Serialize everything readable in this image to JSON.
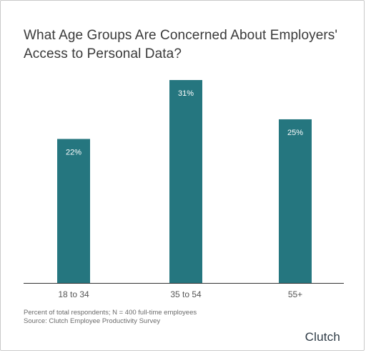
{
  "title": "What Age Groups Are Concerned About Employers' Access to Personal Data?",
  "footer": {
    "note": "Percent of total respondents; N = 400 full-time employees",
    "source": "Source: Clutch Employee Productivity Survey"
  },
  "brand": {
    "logo_text": "Clutch"
  },
  "colors": {
    "bar": "#25767f",
    "axis": "#333333",
    "label_on_bar": "#ffffff",
    "tick_label": "#555555"
  },
  "chart_data": {
    "type": "bar",
    "title": "What Age Groups Are Concerned About Employers' Access to Personal Data?",
    "xlabel": "",
    "ylabel": "",
    "categories": [
      "18 to 34",
      "35 to 54",
      "55+"
    ],
    "values": [
      22,
      31,
      25
    ],
    "value_labels": [
      "22%",
      "31%",
      "25%"
    ],
    "ylim": [
      0,
      35
    ],
    "grid": false,
    "legend": "none"
  }
}
